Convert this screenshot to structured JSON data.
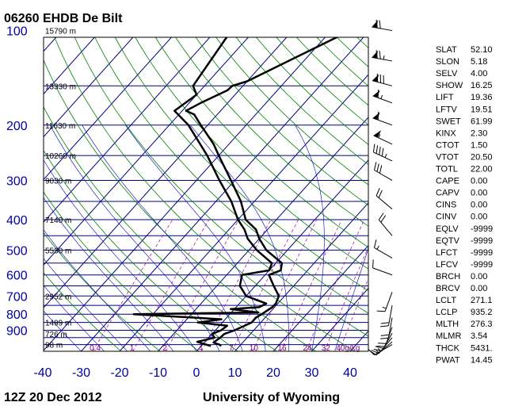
{
  "header": {
    "station": "06260 EHDB De Bilt"
  },
  "footer": {
    "time": "12Z 20 Dec 2012",
    "source": "University of Wyoming"
  },
  "chart_data": {
    "type": "skew-t",
    "pressure_axis": {
      "labels": [
        "100",
        "200",
        "300",
        "400",
        "500",
        "600",
        "700",
        "800",
        "900"
      ],
      "values": [
        100,
        200,
        300,
        400,
        500,
        600,
        700,
        800,
        900
      ],
      "range": [
        100,
        1050
      ],
      "scale": "log"
    },
    "temperature_axis": {
      "labels": [
        "-40",
        "-30",
        "-20",
        "-10",
        "0",
        "10",
        "20",
        "30",
        "40"
      ],
      "values": [
        -40,
        -30,
        -20,
        -10,
        0,
        10,
        20,
        30,
        40
      ],
      "range": [
        -40,
        45
      ]
    },
    "height_labels": [
      {
        "p": 100,
        "text": "15790 m"
      },
      {
        "p": 150,
        "text": "13330 m"
      },
      {
        "p": 200,
        "text": "11630 m"
      },
      {
        "p": 250,
        "text": "10260 m"
      },
      {
        "p": 300,
        "text": "9030 m"
      },
      {
        "p": 400,
        "text": "7140 m"
      },
      {
        "p": 500,
        "text": "5530 m"
      },
      {
        "p": 700,
        "text": "2952 m"
      },
      {
        "p": 850,
        "text": "1499 m"
      },
      {
        "p": 925,
        "text": "726 m"
      },
      {
        "p": 1000,
        "text": "98 m"
      }
    ],
    "mixing_ratio_labels": [
      "0.4",
      "1",
      "2",
      "4",
      "7",
      "10",
      "16",
      "24",
      "32",
      "40g/kg"
    ],
    "temperature_profile": [
      {
        "p": 1010,
        "t": 5.2
      },
      {
        "p": 1000,
        "t": 4.4
      },
      {
        "p": 985,
        "t": 2.4
      },
      {
        "p": 950,
        "t": 3.0
      },
      {
        "p": 925,
        "t": 3.2
      },
      {
        "p": 900,
        "t": 5.0
      },
      {
        "p": 850,
        "t": 7.6
      },
      {
        "p": 820,
        "t": 7.6
      },
      {
        "p": 800,
        "t": 8.3
      },
      {
        "p": 760,
        "t": 9.4
      },
      {
        "p": 740,
        "t": 9.5
      },
      {
        "p": 700,
        "t": 8.5
      },
      {
        "p": 650,
        "t": 4.8
      },
      {
        "p": 600,
        "t": 1.0
      },
      {
        "p": 580,
        "t": 3.0
      },
      {
        "p": 550,
        "t": 1.6
      },
      {
        "p": 500,
        "t": -5.5
      },
      {
        "p": 460,
        "t": -10.0
      },
      {
        "p": 430,
        "t": -13.0
      },
      {
        "p": 400,
        "t": -18.0
      },
      {
        "p": 350,
        "t": -23.5
      },
      {
        "p": 300,
        "t": -31.0
      },
      {
        "p": 250,
        "t": -40.0
      },
      {
        "p": 230,
        "t": -44.0
      },
      {
        "p": 200,
        "t": -51.8
      },
      {
        "p": 185,
        "t": -56.0
      },
      {
        "p": 180,
        "t": -59.0
      },
      {
        "p": 170,
        "t": -57.0
      },
      {
        "p": 155,
        "t": -53.0
      },
      {
        "p": 150,
        "t": -52.8
      },
      {
        "p": 145,
        "t": -50.0
      },
      {
        "p": 100,
        "t": -35.0
      }
    ],
    "dewpoint_profile": [
      {
        "p": 1010,
        "t": 2.5
      },
      {
        "p": 1000,
        "t": 1.0
      },
      {
        "p": 980,
        "t": -2.0
      },
      {
        "p": 950,
        "t": 1.5
      },
      {
        "p": 925,
        "t": 0.0
      },
      {
        "p": 900,
        "t": 1.5
      },
      {
        "p": 870,
        "t": 2.0
      },
      {
        "p": 850,
        "t": -6.4
      },
      {
        "p": 830,
        "t": -1.0
      },
      {
        "p": 800,
        "t": -25.0
      },
      {
        "p": 790,
        "t": 7.0
      },
      {
        "p": 770,
        "t": -1.0
      },
      {
        "p": 760,
        "t": 6.0
      },
      {
        "p": 740,
        "t": 7.0
      },
      {
        "p": 700,
        "t": 0.0
      },
      {
        "p": 650,
        "t": -4.0
      },
      {
        "p": 600,
        "t": -6.0
      },
      {
        "p": 580,
        "t": 0.0
      },
      {
        "p": 550,
        "t": -1.0
      },
      {
        "p": 500,
        "t": -8.0
      },
      {
        "p": 460,
        "t": -13.0
      },
      {
        "p": 430,
        "t": -16.0
      },
      {
        "p": 400,
        "t": -20.0
      },
      {
        "p": 350,
        "t": -26.0
      },
      {
        "p": 300,
        "t": -34.0
      },
      {
        "p": 250,
        "t": -43.0
      },
      {
        "p": 200,
        "t": -55.0
      },
      {
        "p": 180,
        "t": -62.0
      },
      {
        "p": 160,
        "t": -60.0
      },
      {
        "p": 150,
        "t": -63.0
      },
      {
        "p": 100,
        "t": -66.0
      }
    ],
    "indices": [
      {
        "name": "SLAT",
        "value": "52.10"
      },
      {
        "name": "SLON",
        "value": "5.18"
      },
      {
        "name": "SELV",
        "value": "4.00"
      },
      {
        "name": "SHOW",
        "value": "16.25"
      },
      {
        "name": "LIFT",
        "value": "19.36"
      },
      {
        "name": "LFTV",
        "value": "19.51"
      },
      {
        "name": "SWET",
        "value": "61.99"
      },
      {
        "name": "KINX",
        "value": "2.30"
      },
      {
        "name": "CTOT",
        "value": "1.50"
      },
      {
        "name": "VTOT",
        "value": "20.50"
      },
      {
        "name": "TOTL",
        "value": "22.00"
      },
      {
        "name": "CAPE",
        "value": "0.00"
      },
      {
        "name": "CAPV",
        "value": "0.00"
      },
      {
        "name": "CINS",
        "value": "0.00"
      },
      {
        "name": "CINV",
        "value": "0.00"
      },
      {
        "name": "EQLV",
        "value": "-9999"
      },
      {
        "name": "EQTV",
        "value": "-9999"
      },
      {
        "name": "LFCT",
        "value": "-9999"
      },
      {
        "name": "LFCV",
        "value": "-9999"
      },
      {
        "name": "BRCH",
        "value": "0.00"
      },
      {
        "name": "BRCV",
        "value": "0.00"
      },
      {
        "name": "LCLT",
        "value": "271.1"
      },
      {
        "name": "LCLP",
        "value": "935.2"
      },
      {
        "name": "MLTH",
        "value": "276.3"
      },
      {
        "name": "MLMR",
        "value": "3.54"
      },
      {
        "name": "THCK",
        "value": "5431."
      },
      {
        "name": "PWAT",
        "value": "14.45"
      }
    ],
    "wind_barbs": [
      {
        "p": 100,
        "dir": 280,
        "spd": 70
      },
      {
        "p": 125,
        "dir": 280,
        "spd": 75
      },
      {
        "p": 150,
        "dir": 285,
        "spd": 80
      },
      {
        "p": 170,
        "dir": 290,
        "spd": 65
      },
      {
        "p": 200,
        "dir": 290,
        "spd": 60
      },
      {
        "p": 230,
        "dir": 295,
        "spd": 55
      },
      {
        "p": 260,
        "dir": 295,
        "spd": 45
      },
      {
        "p": 300,
        "dir": 300,
        "spd": 30
      },
      {
        "p": 370,
        "dir": 310,
        "spd": 20
      },
      {
        "p": 450,
        "dir": 320,
        "spd": 20
      },
      {
        "p": 530,
        "dir": 300,
        "spd": 15
      },
      {
        "p": 600,
        "dir": 290,
        "spd": 10
      },
      {
        "p": 680,
        "dir": 200,
        "spd": 15
      },
      {
        "p": 750,
        "dir": 190,
        "spd": 20
      },
      {
        "p": 820,
        "dir": 190,
        "spd": 20
      },
      {
        "p": 880,
        "dir": 200,
        "spd": 20
      },
      {
        "p": 920,
        "dir": 210,
        "spd": 20
      },
      {
        "p": 950,
        "dir": 220,
        "spd": 15
      },
      {
        "p": 980,
        "dir": 230,
        "spd": 15
      },
      {
        "p": 1000,
        "dir": 240,
        "spd": 10
      }
    ]
  }
}
